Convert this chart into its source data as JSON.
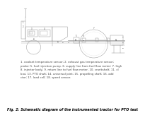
{
  "title": "Fig. 2: Schematic diagram of the instrumented tractor for PTO test",
  "background_color": "#ffffff",
  "caption_lines": [
    "1. coolant temperature sensor; 2. exhaust gas temperature sensor;",
    "probe; 5. fuel injection pump. 6. supply line from fuel flow meter; 7. high",
    "8. injector body; 9. return line to fuel flow meter; 10. crankshaft; 11. cl",
    "box; 13. PTO shaft; 14. universal joint; 15. propelling shaft; 16. add",
    "ctor; 17. load cell; 18. speed sensor."
  ],
  "line_color": "#999999",
  "text_color": "#444444",
  "caption_fontsize": 2.8,
  "title_fontsize": 3.5
}
